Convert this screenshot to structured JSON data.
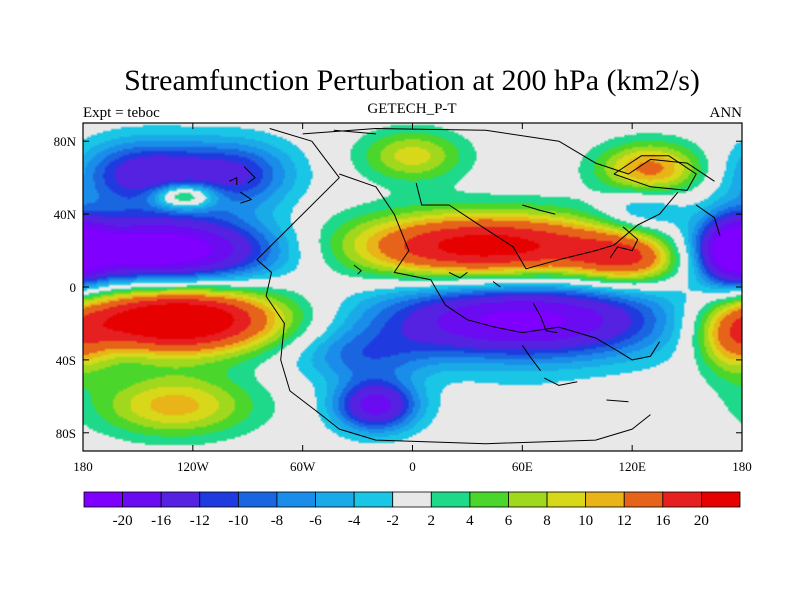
{
  "chart_data": {
    "type": "heatmap",
    "title": "Streamfunction Perturbation at 200 hPa (km2/s)",
    "left_label": "Expt = teboc",
    "center_label": "GETECH_P-T",
    "right_label": "ANN",
    "x_ticks": [
      "180",
      "120W",
      "60W",
      "0",
      "60E",
      "120E",
      "180"
    ],
    "x_tick_values": [
      -180,
      -120,
      -60,
      0,
      60,
      120,
      180
    ],
    "y_ticks": [
      "80N",
      "40N",
      "0",
      "40S",
      "80S"
    ],
    "y_tick_values": [
      80,
      40,
      0,
      -40,
      -80
    ],
    "xlim": [
      -180,
      180
    ],
    "ylim": [
      -90,
      90
    ],
    "colorbar_labels": [
      "-20",
      "-16",
      "-12",
      "-10",
      "-8",
      "-6",
      "-4",
      "-2",
      "2",
      "4",
      "6",
      "8",
      "10",
      "12",
      "16",
      "20"
    ],
    "levels": [
      -20,
      -16,
      -12,
      -10,
      -8,
      -6,
      -4,
      -2,
      2,
      4,
      6,
      8,
      10,
      12,
      16,
      20
    ],
    "colors": [
      "#7f00ff",
      "#6a0bf2",
      "#5522e2",
      "#1f3be0",
      "#1a66e0",
      "#1a8cea",
      "#1aaae8",
      "#1ac6e6",
      "#e8e8e8",
      "#1ed98a",
      "#4bd62b",
      "#9fd81d",
      "#d8d81a",
      "#e8b417",
      "#e6641a",
      "#e62020",
      "#e60000"
    ],
    "blobs": [
      {
        "lon": -145,
        "lat": 62,
        "slon": 26,
        "slat": 13,
        "amp": -15
      },
      {
        "lon": -95,
        "lat": 62,
        "slon": 22,
        "slat": 13,
        "amp": -11
      },
      {
        "lon": -125,
        "lat": 50,
        "slon": 12,
        "slat": 5,
        "amp": 15
      },
      {
        "lon": -140,
        "lat": 20,
        "slon": 46,
        "slat": 13,
        "amp": -26
      },
      {
        "lon": -130,
        "lat": -18,
        "slon": 42,
        "slat": 13,
        "amp": 28
      },
      {
        "lon": -130,
        "lat": -65,
        "slon": 30,
        "slat": 12,
        "amp": 11
      },
      {
        "lon": -20,
        "lat": -65,
        "slon": 16,
        "slat": 10,
        "amp": -18
      },
      {
        "lon": -30,
        "lat": -38,
        "slon": 26,
        "slat": 10,
        "amp": -7
      },
      {
        "lon": 40,
        "lat": 22,
        "slon": 55,
        "slat": 13,
        "amp": 23
      },
      {
        "lon": 120,
        "lat": 15,
        "slon": 22,
        "slat": 10,
        "amp": 14
      },
      {
        "lon": 60,
        "lat": -18,
        "slon": 58,
        "slat": 15,
        "amp": -22
      },
      {
        "lon": 0,
        "lat": 72,
        "slon": 20,
        "slat": 10,
        "amp": 9
      },
      {
        "lon": 130,
        "lat": 65,
        "slon": 20,
        "slat": 10,
        "amp": 13
      },
      {
        "lon": 175,
        "lat": 20,
        "slon": 12,
        "slat": 14,
        "amp": -16
      },
      {
        "lon": 175,
        "lat": -30,
        "slon": 14,
        "slat": 14,
        "amp": 10
      },
      {
        "lon": 125,
        "lat": 42,
        "slon": 16,
        "slat": 8,
        "amp": -6
      },
      {
        "lon": 60,
        "lat": -60,
        "slon": 25,
        "slat": 8,
        "amp": -1
      }
    ],
    "coastlines": [
      [
        [
          -78,
          87
        ],
        [
          -55,
          80
        ],
        [
          -40,
          60
        ],
        [
          -72,
          28
        ],
        [
          -85,
          15
        ],
        [
          -77,
          8
        ],
        [
          -80,
          -5
        ],
        [
          -70,
          -20
        ],
        [
          -72,
          -40
        ],
        [
          -67,
          -57
        ],
        [
          -50,
          -70
        ],
        [
          -40,
          -78
        ],
        [
          -20,
          -84
        ],
        [
          40,
          -86
        ],
        [
          100,
          -84
        ],
        [
          120,
          -78
        ],
        [
          130,
          -70
        ]
      ],
      [
        [
          -40,
          62
        ],
        [
          -20,
          55
        ],
        [
          -10,
          40
        ],
        [
          -2,
          20
        ],
        [
          -10,
          8
        ],
        [
          10,
          4
        ],
        [
          18,
          -10
        ],
        [
          30,
          -18
        ],
        [
          45,
          -22
        ],
        [
          60,
          -25
        ],
        [
          80,
          -22
        ],
        [
          100,
          -28
        ],
        [
          112,
          -35
        ],
        [
          120,
          -40
        ],
        [
          130,
          -38
        ],
        [
          135,
          -30
        ]
      ],
      [
        [
          2,
          57
        ],
        [
          5,
          45
        ],
        [
          20,
          45
        ],
        [
          35,
          35
        ],
        [
          55,
          22
        ],
        [
          62,
          10
        ],
        [
          80,
          15
        ],
        [
          100,
          20
        ],
        [
          110,
          23
        ],
        [
          123,
          34
        ],
        [
          135,
          40
        ],
        [
          145,
          52
        ]
      ],
      [
        [
          -60,
          84
        ],
        [
          -20,
          87
        ],
        [
          40,
          86
        ],
        [
          80,
          80
        ],
        [
          100,
          68
        ],
        [
          118,
          62
        ],
        [
          130,
          70
        ],
        [
          150,
          68
        ],
        [
          165,
          58
        ]
      ],
      [
        [
          110,
          62
        ],
        [
          125,
          72
        ],
        [
          140,
          72
        ],
        [
          155,
          62
        ],
        [
          150,
          53
        ],
        [
          130,
          55
        ],
        [
          110,
          62
        ]
      ],
      [
        [
          115,
          33
        ],
        [
          123,
          26
        ],
        [
          120,
          20
        ],
        [
          112,
          22
        ],
        [
          108,
          16
        ]
      ],
      [
        [
          155,
          45
        ],
        [
          165,
          38
        ],
        [
          168,
          28
        ]
      ],
      [
        [
          -92,
          66
        ],
        [
          -86,
          60
        ],
        [
          -90,
          57
        ]
      ],
      [
        [
          -94,
          52
        ],
        [
          -88,
          48
        ],
        [
          -94,
          46
        ]
      ],
      [
        [
          -100,
          58
        ],
        [
          -96,
          60
        ],
        [
          -96,
          56
        ]
      ],
      [
        [
          60,
          45
        ],
        [
          70,
          42
        ],
        [
          78,
          40
        ]
      ],
      [
        [
          72,
          -50
        ],
        [
          80,
          -54
        ],
        [
          90,
          -52
        ]
      ],
      [
        [
          106,
          -62
        ],
        [
          118,
          -63
        ]
      ],
      [
        [
          66,
          -9
        ],
        [
          70,
          -16
        ],
        [
          73,
          -24
        ],
        [
          79,
          -25
        ]
      ],
      [
        [
          60,
          -32
        ],
        [
          64,
          -38
        ],
        [
          70,
          -46
        ]
      ],
      [
        [
          20,
          8
        ],
        [
          26,
          5
        ],
        [
          30,
          8
        ]
      ],
      [
        [
          -32,
          12
        ],
        [
          -28,
          9
        ],
        [
          -30,
          7
        ]
      ],
      [
        [
          44,
          3
        ],
        [
          48,
          0
        ]
      ],
      [
        [
          -43,
          86
        ],
        [
          -20,
          84
        ]
      ]
    ]
  }
}
